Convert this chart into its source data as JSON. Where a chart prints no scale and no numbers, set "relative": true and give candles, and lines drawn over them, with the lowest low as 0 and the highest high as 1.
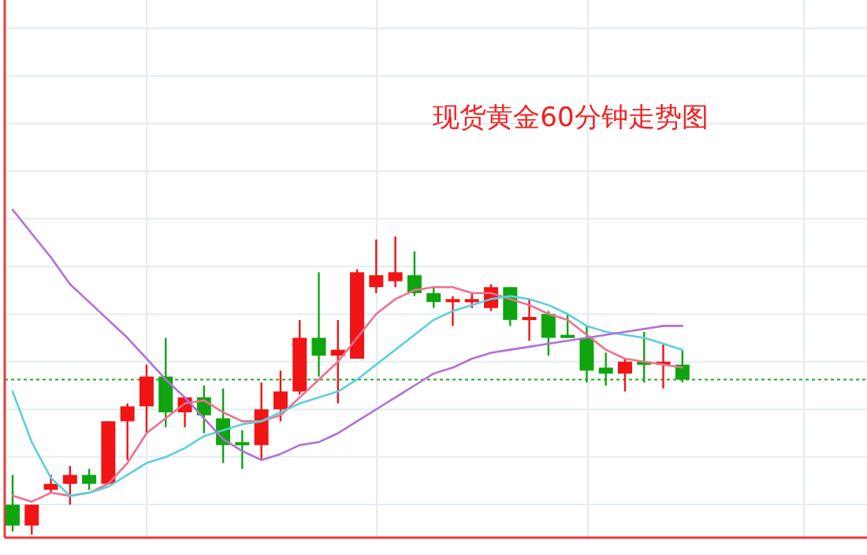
{
  "chart_data": {
    "type": "candlestick",
    "title": "现货黄金60分钟走势图",
    "relative": true,
    "grid": true,
    "categories": [
      null,
      null,
      null,
      null,
      null,
      null,
      null,
      null,
      null,
      null,
      null,
      null,
      null,
      null,
      null,
      null,
      null,
      null,
      null,
      null,
      null,
      null,
      null,
      null,
      null,
      null,
      null,
      null,
      null,
      null,
      null,
      null,
      null,
      null,
      null,
      null
    ],
    "ohlc": [
      [
        0.1,
        0.2,
        0.01,
        0.03
      ],
      [
        0.03,
        0.1,
        0,
        0.1
      ],
      [
        0.15,
        0.2,
        0.14,
        0.17
      ],
      [
        0.17,
        0.23,
        0.1,
        0.2
      ],
      [
        0.2,
        0.22,
        0.15,
        0.17
      ],
      [
        0.17,
        0.38,
        0.17,
        0.38
      ],
      [
        0.38,
        0.44,
        0.25,
        0.43
      ],
      [
        0.43,
        0.57,
        0.34,
        0.53
      ],
      [
        0.53,
        0.66,
        0.36,
        0.41
      ],
      [
        0.41,
        0.46,
        0.36,
        0.46
      ],
      [
        0.46,
        0.5,
        0.34,
        0.4
      ],
      [
        0.39,
        0.49,
        0.24,
        0.3
      ],
      [
        0.31,
        0.35,
        0.22,
        0.3
      ],
      [
        0.3,
        0.51,
        0.25,
        0.42
      ],
      [
        0.42,
        0.55,
        0.38,
        0.48
      ],
      [
        0.48,
        0.72,
        0.47,
        0.66
      ],
      [
        0.66,
        0.88,
        0.53,
        0.6
      ],
      [
        0.6,
        0.72,
        0.44,
        0.62
      ],
      [
        0.59,
        0.89,
        0.59,
        0.88
      ],
      [
        0.83,
        0.99,
        0.81,
        0.87
      ],
      [
        0.85,
        1.0,
        0.83,
        0.88
      ],
      [
        0.87,
        0.95,
        0.8,
        0.81
      ],
      [
        0.81,
        0.83,
        0.76,
        0.78
      ],
      [
        0.78,
        0.8,
        0.7,
        0.79
      ],
      [
        0.78,
        0.81,
        0.76,
        0.79
      ],
      [
        0.76,
        0.84,
        0.75,
        0.83
      ],
      [
        0.83,
        0.83,
        0.7,
        0.72
      ],
      [
        0.72,
        0.79,
        0.65,
        0.73
      ],
      [
        0.74,
        0.75,
        0.6,
        0.66
      ],
      [
        0.67,
        0.74,
        0.66,
        0.66
      ],
      [
        0.66,
        0.7,
        0.51,
        0.55
      ],
      [
        0.56,
        0.61,
        0.5,
        0.54
      ],
      [
        0.54,
        0.59,
        0.48,
        0.58
      ],
      [
        0.58,
        0.68,
        0.51,
        0.57
      ],
      [
        0.57,
        0.64,
        0.49,
        0.58
      ],
      [
        0.57,
        0.62,
        0.51,
        0.52
      ]
    ],
    "series": [
      {
        "type": "line",
        "color": "#f0708f",
        "values": [
          0.13,
          0.11,
          0.14,
          0.13,
          0.14,
          0.17,
          0.24,
          0.34,
          0.39,
          0.44,
          0.45,
          0.41,
          0.38,
          0.38,
          0.4,
          0.46,
          0.52,
          0.58,
          0.66,
          0.74,
          0.79,
          0.82,
          0.83,
          0.83,
          0.81,
          0.81,
          0.79,
          0.77,
          0.74,
          0.72,
          0.67,
          0.62,
          0.59,
          0.58,
          0.57,
          0.56
        ]
      },
      {
        "type": "line",
        "color": "#5ccfe0",
        "values": [
          0.48,
          0.31,
          0.19,
          0.13,
          0.14,
          0.16,
          0.2,
          0.24,
          0.26,
          0.29,
          0.33,
          0.35,
          0.37,
          0.38,
          0.41,
          0.44,
          0.46,
          0.48,
          0.52,
          0.57,
          0.62,
          0.67,
          0.72,
          0.75,
          0.77,
          0.79,
          0.8,
          0.79,
          0.77,
          0.74,
          0.7,
          0.68,
          0.67,
          0.66,
          0.64,
          0.62
        ]
      },
      {
        "type": "line",
        "color": "#b46ed8",
        "values": [
          1.09,
          1.01,
          0.93,
          0.84,
          0.78,
          0.72,
          0.66,
          0.59,
          0.52,
          0.46,
          0.39,
          0.32,
          0.28,
          0.25,
          0.27,
          0.3,
          0.31,
          0.34,
          0.38,
          0.42,
          0.46,
          0.5,
          0.54,
          0.56,
          0.59,
          0.61,
          0.62,
          0.63,
          0.64,
          0.65,
          0.66,
          0.67,
          0.68,
          0.69,
          0.7,
          0.7
        ]
      }
    ],
    "ref_lines": [
      {
        "axis": "y",
        "value": 0.52,
        "color": "#22aa22",
        "line_style": "dotted"
      }
    ]
  }
}
